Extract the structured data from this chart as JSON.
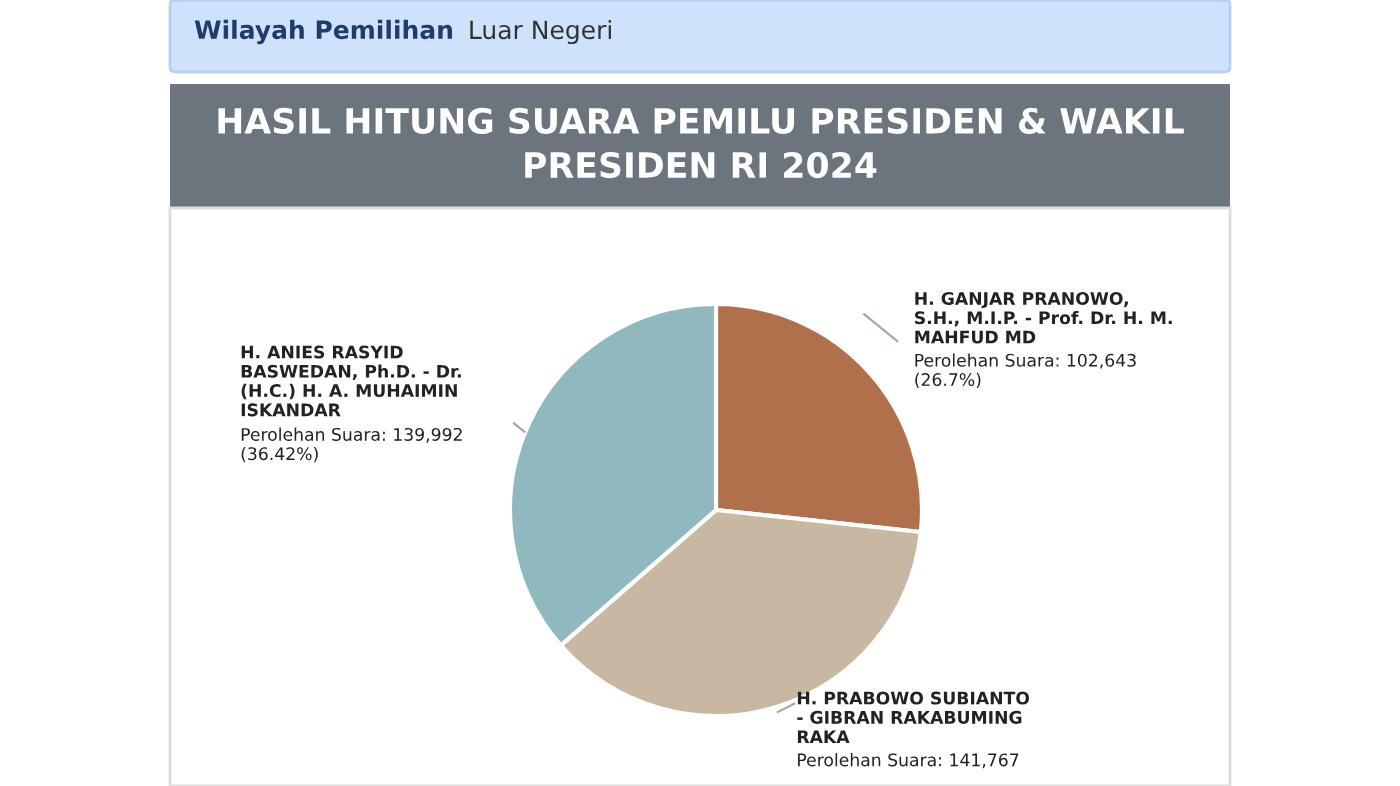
{
  "chart_data": {
    "type": "pie",
    "title": "HASIL HITUNG SUARA PEMILU PRESIDEN & WAKIL PRESIDEN RI 2024",
    "annotations": [
      "Wilayah Pemilihan",
      "Luar Negeri"
    ],
    "categories": [
      "H. GANJAR PRANOWO,\nS.H., M.I.P. - Prof. Dr. H. M.\nMAHFUD MD",
      "H. PRABOWO SUBIANTO\n- GIBRAN RAKABUMING\nRAKA",
      "H. ANIES RASYID\nBASWEDAN, Ph.D. - Dr.\n(H.C.) H. A. MUHAIMIN\nISKANDAR"
    ],
    "values": [
      102643,
      141767,
      139992
    ],
    "colors": [
      "#b0704c",
      "#c8b8a2",
      "#8fb8bf"
    ],
    "value_labels": [
      "Perolehan Suara: 102,643\n(26.7%)",
      "Perolehan Suara: 141,767",
      "Perolehan Suara: 139,992\n(36.42%)"
    ],
    "legend": false
  }
}
